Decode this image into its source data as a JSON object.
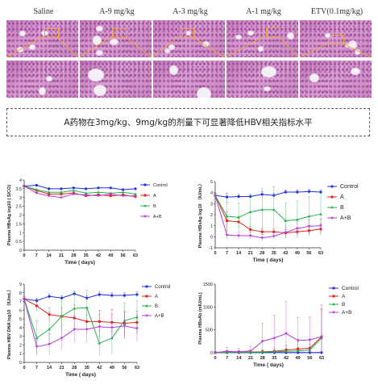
{
  "histology": {
    "columns": [
      {
        "label": "Saline"
      },
      {
        "label": "A-9 mg/kg"
      },
      {
        "label": "A-3 mg/kg"
      },
      {
        "label": "A-1 mg/kg"
      },
      {
        "label": "ETV(0.1mg/kg)"
      }
    ]
  },
  "caption": "A药物在3mg/kg、9mg/kg的剂量下可显著降低HBV相关指标水平",
  "colors": {
    "Control": "#1f2fe0",
    "A": "#e0241c",
    "B": "#22b04a",
    "A+B": "#b43cd8"
  },
  "chart_data": [
    {
      "type": "line",
      "ylabel": "Plasma HBsAg log10 ( S/CO)",
      "xlabel": "Time ( days)",
      "x": [
        0,
        7,
        14,
        21,
        28,
        35,
        42,
        49,
        56,
        63
      ],
      "yticks": [
        0,
        0.5,
        1,
        1.5,
        2,
        2.5,
        3,
        3.5,
        4
      ],
      "ylim": [
        0,
        4
      ],
      "legend": "right",
      "series": [
        {
          "name": "Control",
          "values": [
            3.65,
            3.7,
            3.5,
            3.5,
            3.55,
            3.5,
            3.55,
            3.55,
            3.45,
            3.5
          ]
        },
        {
          "name": "A",
          "values": [
            3.65,
            3.4,
            3.2,
            3.2,
            3.25,
            3.1,
            3.15,
            3.1,
            3.15,
            3.05
          ]
        },
        {
          "name": "B",
          "values": [
            3.65,
            3.45,
            3.3,
            3.3,
            3.4,
            3.25,
            3.3,
            3.25,
            3.3,
            3.2
          ]
        },
        {
          "name": "A+B",
          "values": [
            3.65,
            3.25,
            3.1,
            3.0,
            3.2,
            3.15,
            3.1,
            3.2,
            3.1,
            3.1
          ]
        }
      ]
    },
    {
      "type": "line",
      "ylabel": "Plasma HBsAg log10 （IU/mL）",
      "xlabel": "Time ( days)",
      "x": [
        0,
        7,
        14,
        21,
        28,
        35,
        42,
        49,
        56,
        63
      ],
      "yticks": [
        -1,
        0,
        1,
        2,
        3,
        4,
        5
      ],
      "ylim": [
        -1,
        5
      ],
      "legend": "right",
      "series": [
        {
          "name": "Control",
          "values": [
            3.75,
            3.6,
            3.65,
            3.65,
            3.85,
            3.75,
            4.05,
            4.05,
            4.1,
            4.05
          ]
        },
        {
          "name": "A",
          "values": [
            3.75,
            1.45,
            1.35,
            0.65,
            0.45,
            0.45,
            0.35,
            0.45,
            0.55,
            0.7
          ]
        },
        {
          "name": "B",
          "values": [
            3.75,
            1.85,
            1.75,
            2.25,
            2.45,
            2.45,
            1.45,
            1.55,
            1.85,
            2.05
          ]
        },
        {
          "name": "A+B",
          "values": [
            3.75,
            0.15,
            0.1,
            0.1,
            -0.1,
            0.05,
            0.4,
            0.75,
            0.95,
            1.0
          ]
        }
      ],
      "errors": {
        "Control": [
          0.2,
          0.35,
          0.2,
          0.2,
          0.25,
          0.2,
          0.2,
          0.2,
          0.2,
          0.2
        ],
        "A": [
          0.2,
          0.8,
          0.5,
          0.3,
          0.3,
          0.25,
          0.3,
          0.35,
          0.4,
          0.45
        ],
        "B": [
          0.2,
          1.3,
          1.3,
          1.5,
          1.9,
          2.1,
          1.6,
          1.7,
          1.8,
          1.9
        ],
        "A+B": [
          0.2,
          0.4,
          0.3,
          0.3,
          0.3,
          0.3,
          0.5,
          0.6,
          0.6,
          0.6
        ]
      }
    },
    {
      "type": "line",
      "ylabel": "Plasma HBV DNA log10 （IU/mL）",
      "xlabel": "Time ( days)",
      "x": [
        0,
        7,
        14,
        21,
        28,
        35,
        42,
        49,
        56,
        63
      ],
      "yticks": [
        0,
        1,
        2,
        3,
        4,
        5,
        6,
        7,
        8,
        9
      ],
      "ylim": [
        0,
        9
      ],
      "legend": "right",
      "series": [
        {
          "name": "Control",
          "values": [
            7.3,
            7.1,
            7.6,
            7.4,
            7.9,
            7.4,
            7.8,
            7.7,
            7.7,
            7.8
          ]
        },
        {
          "name": "A",
          "values": [
            7.3,
            6.5,
            5.5,
            5.3,
            5.1,
            4.7,
            4.7,
            4.6,
            4.5,
            4.6
          ]
        },
        {
          "name": "B",
          "values": [
            7.3,
            2.8,
            3.8,
            5.3,
            6.2,
            6.3,
            2.2,
            2.8,
            4.8,
            5.2
          ]
        },
        {
          "name": "A+B",
          "values": [
            7.3,
            1.8,
            2.1,
            2.8,
            3.8,
            3.8,
            4.1,
            4.0,
            4.2,
            3.9
          ]
        }
      ],
      "errors": {
        "Control": [
          0.3,
          0.3,
          0.3,
          0.3,
          0.3,
          0.3,
          0.3,
          0.3,
          0.3,
          0.3
        ],
        "A": [
          0.3,
          0.6,
          0.8,
          1.0,
          1.5,
          1.5,
          1.3,
          1.5,
          1.4,
          1.3
        ],
        "B": [
          0.3,
          2.0,
          2.0,
          2.0,
          1.8,
          2.0,
          1.5,
          1.8,
          2.0,
          1.9
        ],
        "A+B": [
          0.3,
          0.8,
          1.2,
          1.4,
          1.6,
          1.6,
          1.4,
          1.5,
          1.5,
          1.5
        ]
      }
    },
    {
      "type": "line",
      "ylabel": "Plasma HBsAb (mIU/mL)",
      "xlabel": "Time ( days)",
      "x": [
        0,
        7,
        14,
        21,
        28,
        35,
        42,
        49,
        56,
        63
      ],
      "yticks": [
        0,
        500,
        1000,
        1500
      ],
      "ylim": [
        0,
        1500
      ],
      "legend": "right",
      "series": [
        {
          "name": "Control",
          "values": [
            5,
            5,
            5,
            5,
            5,
            5,
            5,
            5,
            5,
            5
          ]
        },
        {
          "name": "A",
          "values": [
            5,
            10,
            15,
            15,
            20,
            30,
            60,
            80,
            100,
            350
          ]
        },
        {
          "name": "B",
          "values": [
            5,
            10,
            10,
            10,
            15,
            20,
            30,
            40,
            60,
            320
          ]
        },
        {
          "name": "A+B",
          "values": [
            5,
            30,
            20,
            40,
            250,
            320,
            420,
            270,
            280,
            350
          ]
        }
      ],
      "errors": {
        "Control": [
          5,
          5,
          5,
          5,
          5,
          5,
          5,
          5,
          5,
          5
        ],
        "A": [
          5,
          20,
          30,
          30,
          40,
          60,
          100,
          160,
          200,
          700
        ],
        "B": [
          5,
          20,
          20,
          20,
          30,
          40,
          60,
          80,
          120,
          650
        ],
        "A+B": [
          5,
          80,
          80,
          100,
          400,
          500,
          700,
          500,
          500,
          600
        ]
      }
    }
  ]
}
